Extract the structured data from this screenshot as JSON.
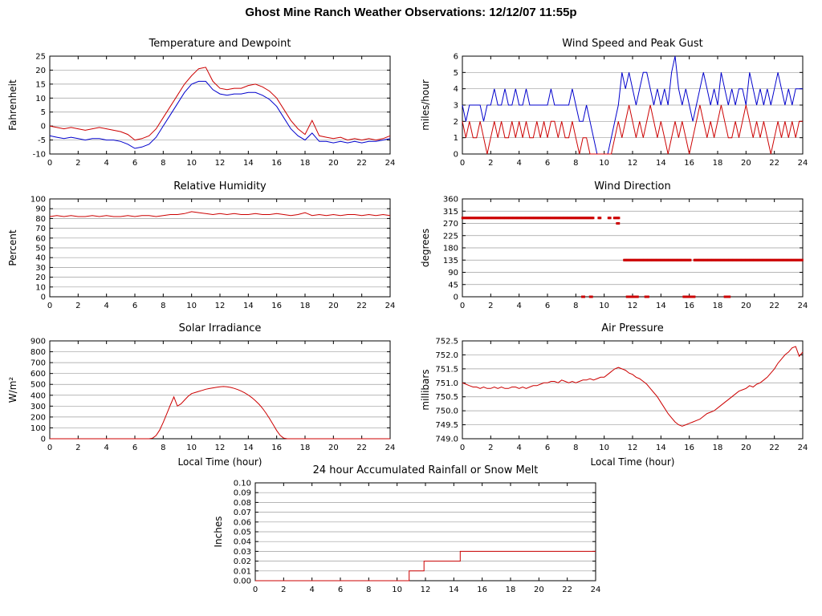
{
  "header": {
    "title": "Ghost Mine Ranch Weather Observations: 12/12/07 11:55p"
  },
  "colors": {
    "red": "#cc0000",
    "blue": "#0000cc",
    "grid": "#9e9e9e",
    "axis": "#000000"
  },
  "chart_data": [
    {
      "type": "line",
      "title": "Temperature and Dewpoint",
      "ylabel": "Fahrenheit",
      "xlabel": "",
      "xlim": [
        0,
        24
      ],
      "ylim": [
        -10,
        25
      ],
      "xticks": [
        0,
        2,
        4,
        6,
        8,
        10,
        12,
        14,
        16,
        18,
        20,
        22,
        24
      ],
      "yticks": [
        -10,
        -5,
        0,
        5,
        10,
        15,
        20,
        25
      ],
      "series": [
        {
          "name": "temperature",
          "color": "red",
          "x0": 0,
          "dx": 0.5,
          "values": [
            0,
            -0.5,
            -1,
            -0.5,
            -1,
            -1.5,
            -1,
            -0.5,
            -1,
            -1.5,
            -2,
            -3,
            -5,
            -4.5,
            -3.5,
            -1,
            3,
            7,
            11,
            15,
            18,
            20.5,
            21,
            16,
            13.5,
            13,
            13.5,
            13.5,
            14.5,
            15,
            14,
            12.5,
            10,
            6,
            2,
            -1,
            -3,
            2,
            -3.5,
            -4,
            -4.5,
            -4,
            -5,
            -4.5,
            -5,
            -4.5,
            -5,
            -4.5,
            -3.5
          ]
        },
        {
          "name": "dewpoint",
          "color": "blue",
          "x0": 0,
          "dx": 0.5,
          "values": [
            -3.5,
            -4,
            -4.5,
            -4,
            -4.5,
            -5,
            -4.5,
            -4.5,
            -5,
            -5,
            -5.5,
            -6.5,
            -8,
            -7.5,
            -6.5,
            -4,
            0,
            4,
            8,
            12,
            15,
            16,
            16,
            13,
            11.5,
            11,
            11.5,
            11.5,
            12,
            12,
            11,
            9.5,
            7,
            3,
            -1,
            -3.5,
            -5,
            -2.5,
            -5.5,
            -5.5,
            -6,
            -5.5,
            -6,
            -5.5,
            -6,
            -5.5,
            -5.5,
            -5,
            -4.5
          ]
        }
      ]
    },
    {
      "type": "line",
      "title": "Wind Speed and Peak Gust",
      "ylabel": "miles/hour",
      "xlabel": "",
      "xlim": [
        0,
        24
      ],
      "ylim": [
        0,
        6
      ],
      "xticks": [
        0,
        2,
        4,
        6,
        8,
        10,
        12,
        14,
        16,
        18,
        20,
        22,
        24
      ],
      "yticks": [
        0,
        1,
        2,
        3,
        4,
        5,
        6
      ],
      "series": [
        {
          "name": "peak_gust",
          "color": "blue",
          "x0": 0,
          "dx": 0.25,
          "values": [
            3,
            2,
            3,
            3,
            3,
            3,
            2,
            3,
            3,
            4,
            3,
            3,
            4,
            3,
            3,
            4,
            3,
            3,
            4,
            3,
            3,
            3,
            3,
            3,
            3,
            4,
            3,
            3,
            3,
            3,
            3,
            4,
            3,
            2,
            2,
            3,
            2,
            1,
            0,
            0,
            0,
            0,
            1,
            2,
            3,
            5,
            4,
            5,
            4,
            3,
            4,
            5,
            5,
            4,
            3,
            4,
            3,
            4,
            3,
            5,
            6,
            4,
            3,
            4,
            3,
            2,
            3,
            4,
            5,
            4,
            3,
            4,
            3,
            5,
            4,
            3,
            4,
            3,
            4,
            4,
            3,
            5,
            4,
            3,
            4,
            3,
            4,
            3,
            4,
            5,
            4,
            3,
            4,
            3,
            4,
            4,
            4
          ]
        },
        {
          "name": "wind_speed",
          "color": "red",
          "x0": 0,
          "dx": 0.25,
          "values": [
            2,
            1,
            2,
            1,
            1,
            2,
            1,
            0,
            1,
            2,
            1,
            2,
            1,
            1,
            2,
            1,
            2,
            1,
            2,
            1,
            1,
            2,
            1,
            2,
            1,
            2,
            2,
            1,
            2,
            1,
            1,
            2,
            1,
            0,
            1,
            1,
            0,
            0,
            0,
            0,
            0,
            0,
            0,
            1,
            2,
            1,
            2,
            3,
            2,
            1,
            2,
            1,
            2,
            3,
            2,
            1,
            2,
            1,
            0,
            1,
            2,
            1,
            2,
            1,
            0,
            1,
            2,
            3,
            2,
            1,
            2,
            1,
            2,
            3,
            2,
            1,
            1,
            2,
            1,
            2,
            3,
            2,
            1,
            2,
            1,
            2,
            1,
            0,
            1,
            2,
            1,
            2,
            1,
            2,
            1,
            2,
            2
          ]
        }
      ]
    },
    {
      "type": "line",
      "title": "Relative Humidity",
      "ylabel": "Percent",
      "xlabel": "",
      "xlim": [
        0,
        24
      ],
      "ylim": [
        0,
        100
      ],
      "xticks": [
        0,
        2,
        4,
        6,
        8,
        10,
        12,
        14,
        16,
        18,
        20,
        22,
        24
      ],
      "yticks": [
        0,
        10,
        20,
        30,
        40,
        50,
        60,
        70,
        80,
        90,
        100
      ],
      "series": [
        {
          "name": "relative_humidity",
          "color": "red",
          "x0": 0,
          "dx": 0.5,
          "values": [
            82,
            83,
            82,
            83,
            82,
            82,
            83,
            82,
            83,
            82,
            82,
            83,
            82,
            83,
            83,
            82,
            83,
            84,
            84,
            85,
            87,
            86,
            85,
            84,
            85,
            84,
            85,
            84,
            84,
            85,
            84,
            84,
            85,
            84,
            83,
            84,
            86,
            83,
            84,
            83,
            84,
            83,
            84,
            84,
            83,
            84,
            83,
            84,
            83
          ]
        }
      ]
    },
    {
      "type": "scatter",
      "title": "Wind Direction",
      "ylabel": "degrees",
      "xlabel": "",
      "xlim": [
        0,
        24
      ],
      "ylim": [
        0,
        360
      ],
      "xticks": [
        0,
        2,
        4,
        6,
        8,
        10,
        12,
        14,
        16,
        18,
        20,
        22,
        24
      ],
      "yticks": [
        0,
        45,
        90,
        135,
        180,
        225,
        270,
        315,
        360
      ],
      "series": [
        {
          "name": "wind_direction",
          "color": "red",
          "segments": [
            {
              "y": 290,
              "from": 0,
              "to": 9.3
            },
            {
              "y": 290,
              "from": 9.6,
              "to": 9.75
            },
            {
              "y": 290,
              "from": 10.3,
              "to": 10.45
            },
            {
              "y": 290,
              "from": 10.7,
              "to": 11.05
            },
            {
              "y": 270,
              "from": 10.9,
              "to": 11.1
            },
            {
              "y": 135,
              "from": 11.4,
              "to": 16.15
            },
            {
              "y": 135,
              "from": 16.35,
              "to": 24
            },
            {
              "y": 0,
              "from": 8.45,
              "to": 8.6
            },
            {
              "y": 0,
              "from": 9.0,
              "to": 9.15
            },
            {
              "y": 0,
              "from": 11.6,
              "to": 12.4
            },
            {
              "y": 0,
              "from": 12.9,
              "to": 13.15
            },
            {
              "y": 0,
              "from": 15.6,
              "to": 16.4
            },
            {
              "y": 0,
              "from": 18.5,
              "to": 18.9
            }
          ]
        }
      ]
    },
    {
      "type": "line",
      "title": "Solar Irradiance",
      "ylabel": "W/m²",
      "xlabel": "Local Time (hour)",
      "xlim": [
        0,
        24
      ],
      "ylim": [
        0,
        900
      ],
      "xticks": [
        0,
        2,
        4,
        6,
        8,
        10,
        12,
        14,
        16,
        18,
        20,
        22,
        24
      ],
      "yticks": [
        0,
        100,
        200,
        300,
        400,
        500,
        600,
        700,
        800,
        900
      ],
      "series": [
        {
          "name": "solar_irradiance",
          "color": "red",
          "x0": 0,
          "dx": 0.25,
          "values": [
            0,
            0,
            0,
            0,
            0,
            0,
            0,
            0,
            0,
            0,
            0,
            0,
            0,
            0,
            0,
            0,
            0,
            0,
            0,
            0,
            0,
            0,
            0,
            0,
            0,
            0,
            0,
            0,
            0,
            5,
            30,
            80,
            150,
            230,
            310,
            385,
            300,
            320,
            355,
            390,
            415,
            425,
            435,
            445,
            455,
            462,
            468,
            473,
            478,
            480,
            477,
            472,
            463,
            452,
            438,
            422,
            402,
            378,
            350,
            318,
            280,
            235,
            185,
            130,
            75,
            30,
            5,
            0,
            0,
            0,
            0,
            0,
            0,
            0,
            0,
            0,
            0,
            0,
            0,
            0,
            0,
            0,
            0,
            0,
            0,
            0,
            0,
            0,
            0,
            0,
            0,
            0,
            0,
            0,
            0,
            0,
            0
          ]
        }
      ]
    },
    {
      "type": "line",
      "title": "Air Pressure",
      "ylabel": "millibars",
      "xlabel": "Local Time (hour)",
      "xlim": [
        0,
        24
      ],
      "ylim": [
        749,
        752.5
      ],
      "xticks": [
        0,
        2,
        4,
        6,
        8,
        10,
        12,
        14,
        16,
        18,
        20,
        22,
        24
      ],
      "yticks": [
        749,
        749.5,
        750,
        750.5,
        751,
        751.5,
        752,
        752.5
      ],
      "ytick_labels": [
        "749.0",
        "749.5",
        "750.0",
        "750.5",
        "751.0",
        "751.5",
        "752.0",
        "752.5"
      ],
      "series": [
        {
          "name": "air_pressure",
          "color": "red",
          "x0": 0,
          "dx": 0.25,
          "values": [
            751.0,
            750.95,
            750.9,
            750.85,
            750.85,
            750.8,
            750.85,
            750.8,
            750.8,
            750.85,
            750.8,
            750.85,
            750.8,
            750.8,
            750.85,
            750.85,
            750.8,
            750.85,
            750.8,
            750.85,
            750.9,
            750.9,
            750.95,
            751.0,
            751.0,
            751.05,
            751.05,
            751.0,
            751.1,
            751.05,
            751.0,
            751.05,
            751.0,
            751.05,
            751.1,
            751.1,
            751.15,
            751.1,
            751.15,
            751.2,
            751.2,
            751.3,
            751.4,
            751.5,
            751.55,
            751.5,
            751.45,
            751.35,
            751.3,
            751.2,
            751.15,
            751.05,
            750.95,
            750.8,
            750.65,
            750.5,
            750.3,
            750.1,
            749.9,
            749.75,
            749.6,
            749.5,
            749.45,
            749.5,
            749.55,
            749.6,
            749.65,
            749.7,
            749.8,
            749.9,
            749.95,
            750.0,
            750.1,
            750.2,
            750.3,
            750.4,
            750.5,
            750.6,
            750.7,
            750.75,
            750.8,
            750.9,
            750.85,
            750.95,
            751.0,
            751.1,
            751.2,
            751.35,
            751.5,
            751.7,
            751.85,
            752.0,
            752.1,
            752.25,
            752.3,
            751.95,
            752.1
          ]
        }
      ]
    },
    {
      "type": "line",
      "title": "24 hour Accumulated Rainfall or Snow Melt",
      "ylabel": "Inches",
      "xlabel": "",
      "xlim": [
        0,
        24
      ],
      "ylim": [
        0,
        0.1
      ],
      "xticks": [
        0,
        2,
        4,
        6,
        8,
        10,
        12,
        14,
        16,
        18,
        20,
        22,
        24
      ],
      "yticks": [
        0,
        0.01,
        0.02,
        0.03,
        0.04,
        0.05,
        0.06,
        0.07,
        0.08,
        0.09,
        0.1
      ],
      "ytick_labels": [
        "0.00",
        "0.01",
        "0.02",
        "0.03",
        "0.04",
        "0.05",
        "0.06",
        "0.07",
        "0.08",
        "0.09",
        "0.10"
      ],
      "series": [
        {
          "name": "accumulated_precip",
          "color": "red",
          "points": [
            [
              0,
              0
            ],
            [
              10.85,
              0
            ],
            [
              10.85,
              0.01
            ],
            [
              11.9,
              0.01
            ],
            [
              11.9,
              0.02
            ],
            [
              14.45,
              0.02
            ],
            [
              14.45,
              0.03
            ],
            [
              24,
              0.03
            ]
          ]
        }
      ]
    }
  ]
}
